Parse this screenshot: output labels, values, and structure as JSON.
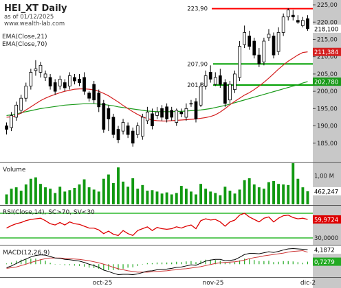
{
  "header": {
    "symbol_title": "HEI_XT Daily",
    "as_of": "as of 01/12/2025",
    "website": "www.wealth-lab.com"
  },
  "colors": {
    "up_candle": "#ffffff",
    "down_candle": "#000000",
    "ema21": "#d42020",
    "ema70": "#1a9a1a",
    "resistance": "#ff0000",
    "support": "#00a000",
    "volume": "#119911",
    "rsi": "#dd0000",
    "rsi_band": "#00aa00",
    "macd": "#000000",
    "macd_signal": "#cc3333",
    "macd_hist": "#22aa22",
    "axis_strip": "#c8c8c8",
    "panel_bg": "#ffffff"
  },
  "chart_data": [
    {
      "type": "candlestick",
      "panel": "price",
      "title": "HEI_XT Daily",
      "ylim": [
        180,
        226
      ],
      "yticks": [
        "225,00",
        "220,00",
        "215,00",
        "210,00",
        "205,00",
        "200,00",
        "195,00",
        "190,00",
        "185,00"
      ],
      "xticks": [
        "oct-25",
        "nov-25",
        "dic-2"
      ],
      "indicator_labels": [
        "EMA(Close,21)",
        "EMA(Close,70)"
      ],
      "current_values": {
        "close": "218,100",
        "ema21": "211,384",
        "ema70": "202,780"
      },
      "levels": [
        {
          "label": "223,90",
          "value": 223.9,
          "kind": "resistance"
        },
        {
          "label": "207,90",
          "value": 207.9,
          "kind": "support"
        },
        {
          "label": "201,80",
          "value": 201.8,
          "kind": "support"
        }
      ],
      "series": [
        {
          "name": "EMA(Close,21)",
          "values": [
            192.5,
            192.6,
            193.0,
            193.7,
            194.6,
            195.5,
            196.4,
            197.3,
            198.0,
            198.6,
            199.1,
            199.6,
            200.0,
            200.3,
            200.6,
            200.7,
            200.7,
            200.6,
            200.4,
            200.0,
            199.4,
            198.7,
            197.8,
            196.9,
            195.9,
            195.0,
            194.1,
            193.3,
            192.6,
            192.1,
            191.7,
            191.5,
            191.4,
            191.4,
            191.5,
            191.6,
            191.7,
            191.8,
            191.9,
            192.0,
            192.2,
            192.4,
            192.7,
            193.2,
            194.0,
            195.0,
            196.1,
            197.1,
            198.0,
            198.9,
            199.6,
            200.5,
            201.5,
            202.6,
            203.8,
            205.1,
            206.4,
            207.6,
            208.7,
            209.6,
            210.5,
            211.2,
            211.4
          ]
        },
        {
          "name": "EMA(Close,70)",
          "values": [
            193.0,
            193.2,
            193.5,
            193.8,
            194.1,
            194.4,
            194.7,
            195.0,
            195.2,
            195.4,
            195.6,
            195.8,
            196.0,
            196.1,
            196.2,
            196.3,
            196.4,
            196.4,
            196.4,
            196.3,
            196.2,
            196.0,
            195.8,
            195.5,
            195.3,
            195.1,
            194.9,
            194.7,
            194.5,
            194.3,
            194.2,
            194.1,
            194.1,
            194.1,
            194.1,
            194.2,
            194.2,
            194.3,
            194.4,
            194.5,
            194.6,
            194.8,
            195.0,
            195.3,
            195.6,
            195.9,
            196.3,
            196.7,
            197.1,
            197.5,
            197.9,
            198.3,
            198.7,
            199.1,
            199.5,
            199.9,
            200.3,
            200.7,
            201.1,
            201.5,
            201.9,
            202.4,
            202.8
          ]
        },
        {
          "name": "open",
          "values": [
            190.0,
            189.5,
            192.5,
            194.5,
            198.0,
            201.5,
            206.0,
            205.5,
            204.0,
            204.0,
            202.5,
            201.5,
            202.5,
            201.5,
            204.0,
            203.5,
            204.0,
            199.5,
            202.0,
            199.5,
            196.5,
            195.0,
            192.5,
            189.0,
            188.5,
            190.0,
            188.5,
            187.5,
            187.0,
            191.5,
            193.5,
            193.0,
            195.0,
            195.5,
            194.5,
            191.0,
            194.0,
            192.5,
            196.5,
            197.0,
            196.0,
            201.5,
            205.5,
            202.0,
            204.5,
            202.5,
            197.5,
            200.5,
            204.0,
            213.5,
            216.0,
            214.5,
            210.5,
            208.5,
            215.5,
            216.0,
            211.5,
            217.0,
            221.5,
            222.0,
            220.5,
            219.0,
            221.0
          ]
        },
        {
          "name": "close",
          "values": [
            189.0,
            193.0,
            196.0,
            198.0,
            201.5,
            205.5,
            206.5,
            207.5,
            205.0,
            201.5,
            200.0,
            203.5,
            201.0,
            204.5,
            203.0,
            202.5,
            200.0,
            198.0,
            197.5,
            195.5,
            189.0,
            192.0,
            187.5,
            186.0,
            191.0,
            187.5,
            185.0,
            190.0,
            192.5,
            194.0,
            190.0,
            194.0,
            192.5,
            192.0,
            192.5,
            194.5,
            193.5,
            195.0,
            196.5,
            192.0,
            201.5,
            204.5,
            203.5,
            204.0,
            202.0,
            196.5,
            202.0,
            205.0,
            213.0,
            217.0,
            213.0,
            210.5,
            208.0,
            214.5,
            216.5,
            210.5,
            217.0,
            221.5,
            223.5,
            221.5,
            220.0,
            220.5,
            218.1
          ]
        },
        {
          "name": "high",
          "values": [
            191.0,
            194.0,
            197.0,
            199.0,
            202.5,
            206.5,
            209.0,
            208.5,
            206.0,
            205.0,
            203.5,
            204.5,
            203.5,
            205.5,
            205.0,
            205.0,
            205.5,
            200.0,
            203.0,
            200.5,
            197.5,
            196.0,
            193.5,
            190.0,
            192.0,
            191.0,
            189.5,
            191.0,
            193.5,
            195.5,
            195.0,
            195.5,
            196.0,
            196.5,
            195.5,
            195.0,
            195.0,
            196.5,
            197.5,
            198.0,
            202.5,
            206.0,
            207.5,
            205.5,
            206.5,
            203.5,
            203.0,
            206.0,
            214.5,
            219.0,
            217.5,
            215.5,
            212.5,
            215.5,
            218.0,
            217.0,
            218.5,
            222.5,
            224.0,
            223.5,
            222.0,
            221.5,
            222.0
          ]
        },
        {
          "name": "low",
          "values": [
            187.5,
            188.5,
            191.5,
            193.5,
            197.0,
            200.5,
            204.5,
            204.0,
            203.0,
            200.5,
            199.0,
            200.5,
            200.0,
            200.5,
            202.0,
            201.5,
            199.0,
            197.0,
            196.5,
            194.0,
            188.0,
            188.5,
            186.5,
            185.0,
            187.5,
            186.5,
            184.0,
            186.5,
            186.0,
            190.5,
            189.0,
            192.0,
            191.5,
            191.0,
            191.5,
            190.0,
            192.5,
            191.5,
            195.5,
            191.0,
            195.5,
            200.5,
            202.5,
            201.5,
            201.0,
            195.5,
            196.5,
            199.5,
            203.0,
            212.5,
            212.0,
            209.5,
            207.0,
            207.5,
            214.5,
            209.5,
            210.5,
            216.0,
            220.5,
            220.5,
            219.5,
            218.5,
            217.5
          ]
        }
      ]
    },
    {
      "type": "bar",
      "panel": "volume",
      "title": "Volume",
      "yticks": [
        "1,00 M"
      ],
      "current_value": "462,247",
      "ylim": [
        0,
        1.4
      ],
      "series": [
        {
          "name": "Volume",
          "values": [
            0.35,
            0.55,
            0.6,
            0.48,
            0.7,
            0.9,
            0.95,
            0.72,
            0.6,
            0.55,
            0.4,
            0.62,
            0.45,
            0.5,
            0.58,
            0.7,
            0.88,
            0.6,
            0.52,
            0.45,
            0.9,
            1.05,
            0.75,
            1.3,
            0.8,
            0.62,
            0.92,
            0.55,
            0.68,
            0.48,
            0.5,
            0.45,
            0.38,
            0.42,
            0.35,
            0.4,
            0.65,
            0.55,
            0.45,
            0.35,
            0.72,
            0.55,
            0.45,
            0.4,
            0.32,
            0.62,
            0.48,
            0.38,
            0.52,
            0.85,
            0.92,
            0.7,
            0.6,
            0.55,
            0.78,
            0.82,
            0.72,
            0.7,
            0.68,
            1.45,
            0.9,
            0.6,
            0.46
          ]
        }
      ]
    },
    {
      "type": "line",
      "panel": "rsi",
      "title": "RSI(Close,14), SC>70, SV<30",
      "ylim": [
        20,
        80
      ],
      "yticks": [
        "30,0000"
      ],
      "bands": [
        70,
        30
      ],
      "current_value": "59,9724",
      "series": [
        {
          "name": "RSI(Close,14)",
          "values": [
            46,
            50,
            53,
            55,
            58,
            60,
            61,
            62,
            58,
            53,
            51,
            55,
            51,
            56,
            53,
            52,
            49,
            46,
            46,
            43,
            37,
            41,
            36,
            34,
            42,
            37,
            34,
            42,
            45,
            48,
            42,
            47,
            45,
            44,
            45,
            48,
            46,
            49,
            51,
            45,
            58,
            61,
            59,
            60,
            56,
            49,
            56,
            59,
            67,
            70,
            64,
            60,
            56,
            62,
            64,
            56,
            62,
            66,
            67,
            63,
            61,
            62,
            60
          ]
        }
      ]
    },
    {
      "type": "line",
      "panel": "macd",
      "title": "MACD(12,26,9)",
      "ylim": [
        -3.5,
        5
      ],
      "current_values": {
        "macd": "4,1872",
        "histogram": "0,7279"
      },
      "series": [
        {
          "name": "MACD",
          "values": [
            -1.0,
            -0.5,
            0.2,
            0.9,
            1.5,
            2.1,
            2.5,
            2.7,
            2.6,
            2.2,
            1.8,
            1.7,
            1.4,
            1.3,
            1.1,
            0.9,
            0.5,
            0.0,
            -0.4,
            -0.9,
            -1.7,
            -2.1,
            -2.6,
            -3.0,
            -2.9,
            -2.9,
            -3.0,
            -2.8,
            -2.4,
            -2.0,
            -1.9,
            -1.6,
            -1.5,
            -1.4,
            -1.2,
            -0.9,
            -0.8,
            -0.5,
            -0.2,
            -0.3,
            0.3,
            0.9,
            1.2,
            1.4,
            1.4,
            1.0,
            1.1,
            1.3,
            2.0,
            2.8,
            3.1,
            3.1,
            3.0,
            3.3,
            3.6,
            3.4,
            3.7,
            4.1,
            4.4,
            4.5,
            4.4,
            4.3,
            4.19
          ]
        },
        {
          "name": "Signal",
          "values": [
            -1.2,
            -1.0,
            -0.8,
            -0.4,
            0.0,
            0.5,
            0.9,
            1.3,
            1.6,
            1.8,
            1.8,
            1.8,
            1.7,
            1.6,
            1.5,
            1.4,
            1.2,
            1.0,
            0.7,
            0.4,
            0.0,
            -0.4,
            -0.9,
            -1.3,
            -1.6,
            -1.9,
            -2.1,
            -2.3,
            -2.3,
            -2.3,
            -2.2,
            -2.1,
            -2.0,
            -1.9,
            -1.7,
            -1.6,
            -1.4,
            -1.3,
            -1.1,
            -0.9,
            -0.7,
            -0.4,
            -0.1,
            0.2,
            0.4,
            0.5,
            0.6,
            0.7,
            0.9,
            1.2,
            1.6,
            1.9,
            2.1,
            2.4,
            2.6,
            2.8,
            3.0,
            3.2,
            3.5,
            3.7,
            3.8,
            3.9,
            3.46
          ]
        },
        {
          "name": "Histogram",
          "values": [
            0.2,
            0.5,
            1.0,
            1.3,
            1.5,
            1.6,
            1.6,
            1.4,
            1.0,
            0.4,
            0.0,
            -0.1,
            -0.3,
            -0.3,
            -0.4,
            -0.5,
            -0.7,
            -1.0,
            -1.1,
            -1.3,
            -1.7,
            -1.7,
            -1.7,
            -1.7,
            -1.3,
            -1.0,
            -0.9,
            -0.5,
            -0.1,
            0.3,
            0.3,
            0.5,
            0.5,
            0.5,
            0.5,
            0.7,
            0.6,
            0.8,
            0.9,
            0.6,
            1.0,
            1.3,
            1.3,
            1.2,
            1.0,
            0.5,
            0.5,
            0.6,
            1.1,
            1.6,
            1.5,
            1.2,
            0.9,
            0.9,
            1.0,
            0.6,
            0.7,
            0.9,
            0.9,
            0.8,
            0.6,
            0.4,
            0.73
          ]
        }
      ]
    }
  ]
}
